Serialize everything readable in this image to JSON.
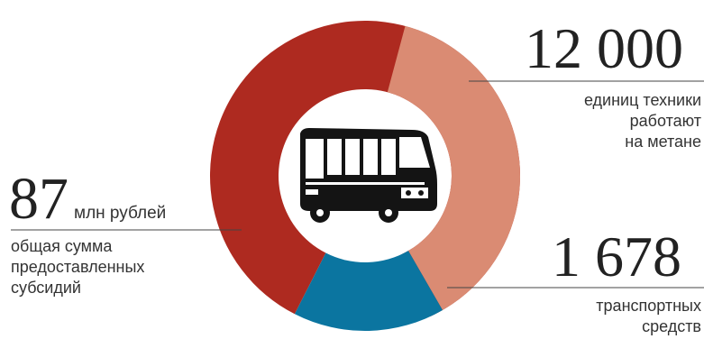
{
  "chart_data": {
    "type": "pie",
    "style": "donut",
    "segments": [
      {
        "value": 87,
        "color": "#AE2A20"
      },
      {
        "value": 12000,
        "color": "#DA8B73"
      },
      {
        "value": 1678,
        "color": "#0B75A0"
      }
    ],
    "annotations": {
      "subsidy": {
        "value": "87",
        "unit": "млн рублей",
        "text": "общая сумма\nпредоставленных\nсубсидий"
      },
      "methane": {
        "value": "12 000",
        "text": "единиц техники\nработают\nна метане"
      },
      "transport": {
        "value": "1 678",
        "text": "транспортных\nсредств"
      }
    },
    "center_icon": "bus-icon"
  },
  "colors": {
    "red": "#AE2A20",
    "salmon": "#DA8B73",
    "blue": "#0B75A0",
    "line": "#444444"
  }
}
